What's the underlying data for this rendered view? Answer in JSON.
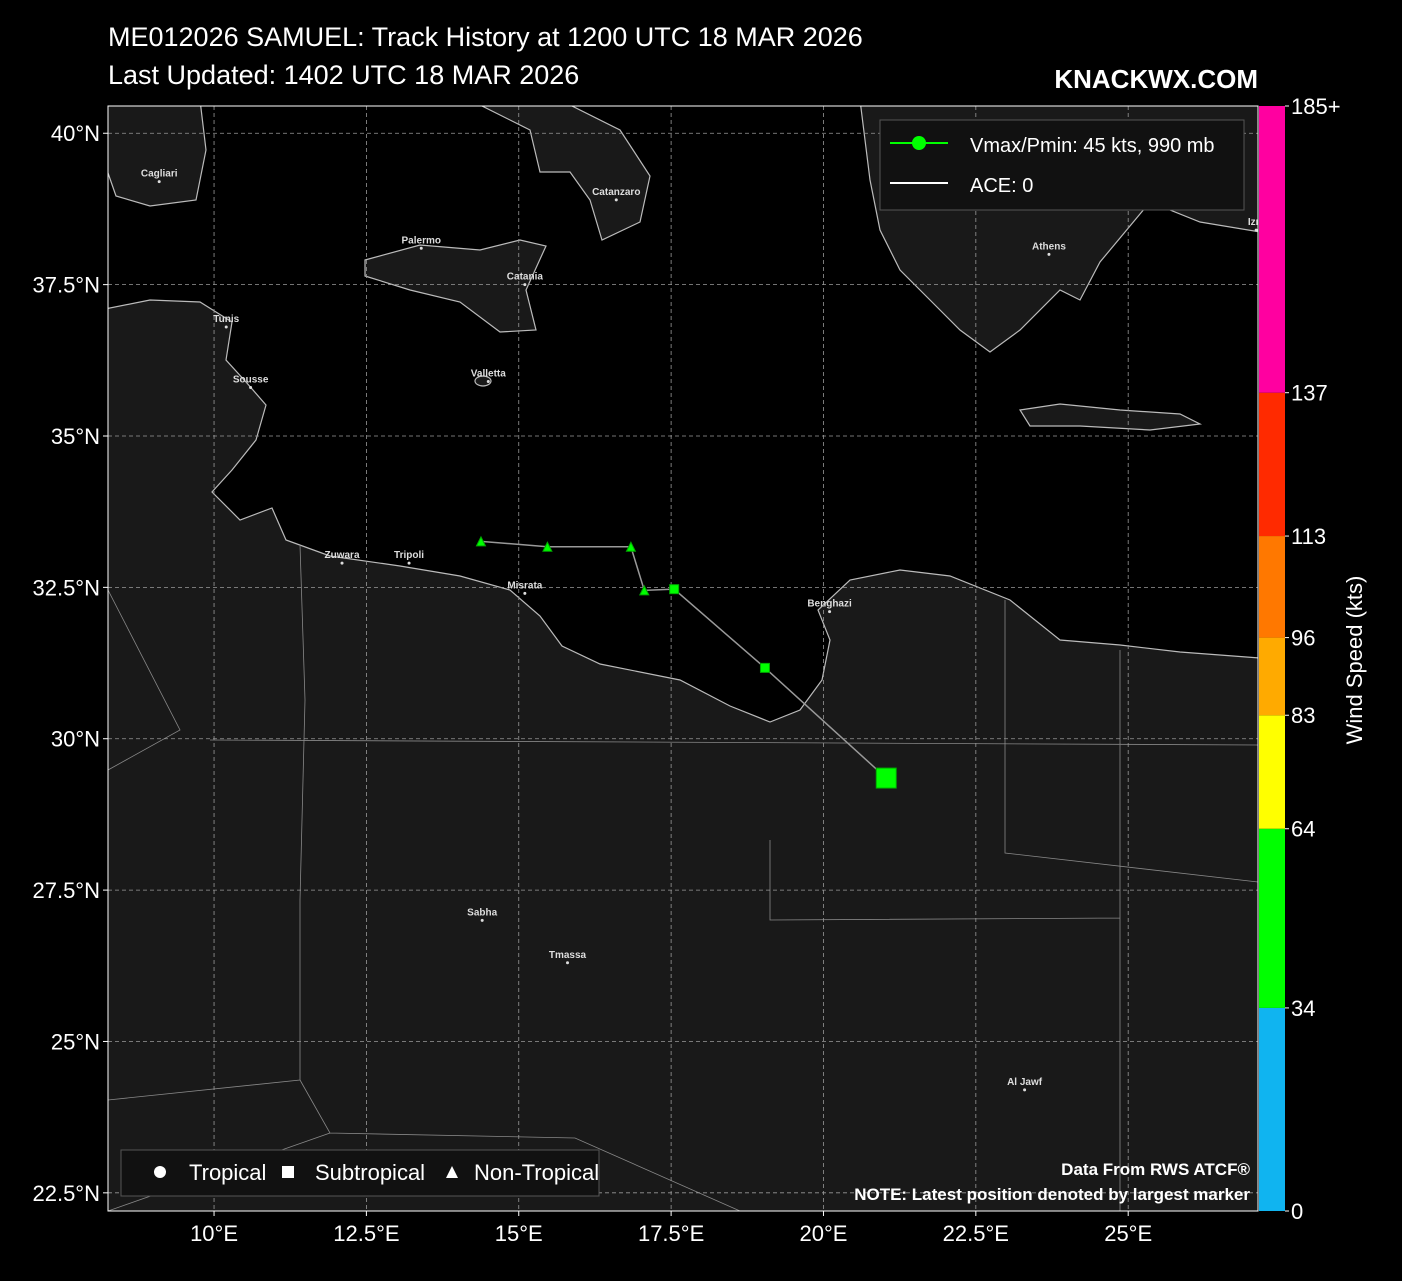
{
  "chart_data": {
    "type": "track-map",
    "title": "ME012026 SAMUEL: Track History at 1200 UTC 18 MAR 2026",
    "subtitle": "Last Updated: 1402 UTC 18 MAR 2026",
    "watermark": "KNACKWX.COM",
    "xlim": [
      8.26,
      27.13
    ],
    "ylim": [
      22.2,
      40.45
    ],
    "xticks": [
      {
        "value": 10,
        "label": "10°E"
      },
      {
        "value": 12.5,
        "label": "12.5°E"
      },
      {
        "value": 15,
        "label": "15°E"
      },
      {
        "value": 17.5,
        "label": "17.5°E"
      },
      {
        "value": 20,
        "label": "20°E"
      },
      {
        "value": 22.5,
        "label": "22.5°E"
      },
      {
        "value": 25,
        "label": "25°E"
      }
    ],
    "yticks": [
      {
        "value": 22.5,
        "label": "22.5°N"
      },
      {
        "value": 25,
        "label": "25°N"
      },
      {
        "value": 27.5,
        "label": "27.5°N"
      },
      {
        "value": 30,
        "label": "30°N"
      },
      {
        "value": 32.5,
        "label": "32.5°N"
      },
      {
        "value": 35,
        "label": "35°N"
      },
      {
        "value": 37.5,
        "label": "37.5°N"
      },
      {
        "value": 40,
        "label": "40°N"
      }
    ],
    "grid": true,
    "track": {
      "lon": [
        14.38,
        15.47,
        16.84,
        17.06,
        17.55,
        19.04,
        21.03
      ],
      "lat": [
        33.26,
        33.17,
        33.17,
        32.45,
        32.47,
        31.17,
        29.35
      ],
      "markers": [
        "triangle",
        "triangle",
        "triangle",
        "triangle",
        "square",
        "square",
        "square"
      ],
      "color": "#00ff00"
    },
    "legend": [
      "Vmax/Pmin: 45 kts, 990 mb",
      "ACE: 0"
    ],
    "marker_legend": [
      "Tropical",
      "Subtropical",
      "Non-Tropical"
    ],
    "notes": [
      "Data From RWS ATCF®",
      "NOTE: Latest position denoted by largest marker"
    ],
    "cities": [
      {
        "name": "Cagliari",
        "lon": 9.1,
        "lat": 39.2
      },
      {
        "name": "Catanzaro",
        "lon": 16.6,
        "lat": 38.9
      },
      {
        "name": "Palermo",
        "lon": 13.4,
        "lat": 38.1
      },
      {
        "name": "Catania",
        "lon": 15.1,
        "lat": 37.5
      },
      {
        "name": "Tunis",
        "lon": 10.2,
        "lat": 36.8
      },
      {
        "name": "Sousse",
        "lon": 10.6,
        "lat": 35.8
      },
      {
        "name": "Valletta",
        "lon": 14.5,
        "lat": 35.9
      },
      {
        "name": "Athens",
        "lon": 23.7,
        "lat": 38.0
      },
      {
        "name": "Izm",
        "lon": 27.1,
        "lat": 38.4
      },
      {
        "name": "Zuwara",
        "lon": 12.1,
        "lat": 32.9
      },
      {
        "name": "Tripoli",
        "lon": 13.2,
        "lat": 32.9
      },
      {
        "name": "Misrata",
        "lon": 15.1,
        "lat": 32.4
      },
      {
        "name": "Benghazi",
        "lon": 20.1,
        "lat": 32.1
      },
      {
        "name": "Sabha",
        "lon": 14.4,
        "lat": 27.0
      },
      {
        "name": "Tmassa",
        "lon": 15.8,
        "lat": 26.3
      },
      {
        "name": "Al Jawf",
        "lon": 23.3,
        "lat": 24.2
      }
    ],
    "colorbar": {
      "label": "Wind Speed (kts)",
      "lim": [
        0,
        185
      ],
      "ticks": [
        0,
        34,
        64,
        83,
        96,
        113,
        137,
        {
          "value": 185,
          "label": "185+"
        }
      ],
      "colors": [
        "#10b4f0",
        "#00ff00",
        "#ffff00",
        "#ffaa00",
        "#ff7800",
        "#ff2a00",
        "#ff00a0"
      ]
    }
  }
}
